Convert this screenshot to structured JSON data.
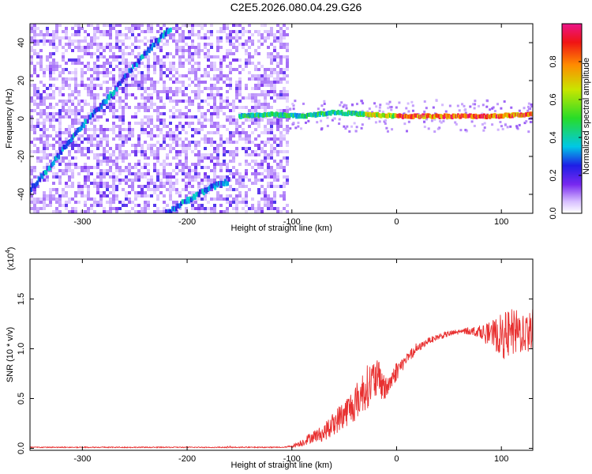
{
  "title": "C2E5.2026.080.04.29.G26",
  "colors": {
    "line": "#e83030",
    "frame": "#000000",
    "spectrogram_bg": "#ffffff",
    "track_low": "#7a2cf0",
    "track_high": "#e8203a"
  },
  "colorbar": {
    "label": "Normalized spectral amplitude",
    "ticks": [
      "0.0",
      "0.2",
      "0.4",
      "0.6",
      "0.8"
    ],
    "tick_values": [
      0.0,
      0.2,
      0.4,
      0.6,
      0.8
    ],
    "range": [
      0,
      1
    ],
    "colormap": "rainbow"
  },
  "chart_data": [
    {
      "type": "heatmap",
      "name": "spectrogram",
      "xlabel": "Height of straight line (km)",
      "ylabel": "Frequency (Hz)",
      "xlim": [
        -350,
        130
      ],
      "ylim": [
        -50,
        50
      ],
      "xticks": [
        -300,
        -200,
        -100,
        0,
        100
      ],
      "xtick_labels": [
        "-300",
        "-200",
        "-100",
        "0",
        "100"
      ],
      "yticks": [
        -40,
        -20,
        0,
        20,
        40
      ],
      "ytick_labels": [
        "-40",
        "-20",
        "0",
        "20",
        "40"
      ],
      "noise_region_x": [
        -350,
        -105
      ],
      "tracks": [
        {
          "name": "aliased-track-1",
          "x": [
            -350,
            -330,
            -310,
            -290,
            -270,
            -250,
            -230,
            -215
          ],
          "y": [
            -38,
            -25,
            -10,
            2,
            14,
            28,
            40,
            48
          ]
        },
        {
          "name": "aliased-track-2",
          "x": [
            -220,
            -205,
            -190,
            -175,
            -160
          ],
          "y": [
            -50,
            -45,
            -40,
            -36,
            -33
          ]
        },
        {
          "name": "carrier",
          "x": [
            -150,
            -120,
            -90,
            -60,
            -30,
            0,
            30,
            60,
            90,
            130
          ],
          "y": [
            1,
            2,
            1,
            3,
            2,
            1,
            1,
            1,
            1,
            2
          ]
        }
      ]
    },
    {
      "type": "line",
      "name": "snr",
      "xlabel": "Height of straight line (km)",
      "ylabel": "SNR (10 * v/v)",
      "yscale_label": "(x10",
      "yscale_exp": "4",
      "yscale_close": ")",
      "xlim": [
        -350,
        130
      ],
      "ylim": [
        -0.02,
        1.9
      ],
      "xticks": [
        -300,
        -200,
        -100,
        0,
        100
      ],
      "xtick_labels": [
        "-300",
        "-200",
        "-100",
        "0",
        "100"
      ],
      "yticks": [
        0.0,
        0.5,
        1.0,
        1.5
      ],
      "ytick_labels": [
        "0.0",
        "0.5",
        "1.0",
        "1.5"
      ],
      "series": [
        {
          "name": "SNR",
          "x": [
            -350,
            -300,
            -250,
            -200,
            -150,
            -110,
            -100,
            -90,
            -80,
            -70,
            -60,
            -50,
            -40,
            -30,
            -20,
            -10,
            0,
            10,
            20,
            30,
            40,
            50,
            60,
            70,
            80,
            90,
            100,
            110,
            120,
            130
          ],
          "y": [
            0.01,
            0.01,
            0.01,
            0.01,
            0.01,
            0.01,
            0.02,
            0.06,
            0.12,
            0.15,
            0.25,
            0.35,
            0.45,
            0.6,
            0.7,
            0.6,
            0.78,
            0.9,
            1.0,
            1.08,
            1.12,
            1.15,
            1.17,
            1.18,
            1.17,
            1.15,
            1.13,
            1.15,
            1.17,
            1.2
          ],
          "noise": [
            0.005,
            0.005,
            0.005,
            0.005,
            0.005,
            0.005,
            0.01,
            0.04,
            0.06,
            0.08,
            0.12,
            0.15,
            0.18,
            0.22,
            0.22,
            0.12,
            0.1,
            0.05,
            0.04,
            0.03,
            0.03,
            0.03,
            0.03,
            0.04,
            0.06,
            0.12,
            0.22,
            0.25,
            0.22,
            0.2
          ]
        }
      ]
    }
  ]
}
